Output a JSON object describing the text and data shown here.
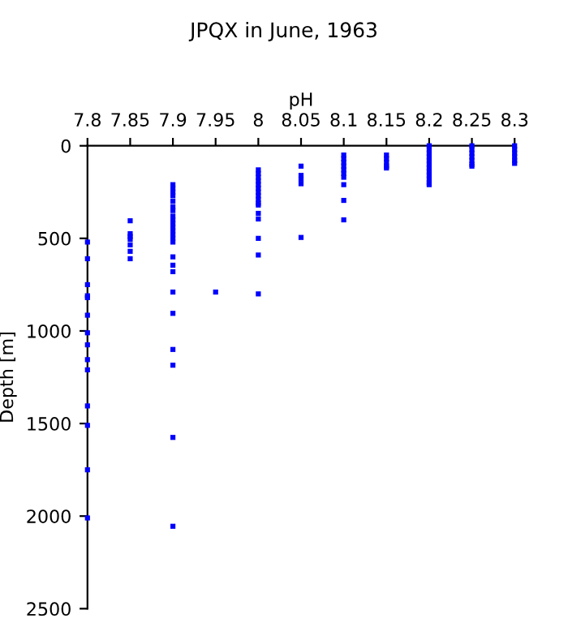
{
  "chart_data": {
    "type": "scatter",
    "title": "JPQX in June, 1963",
    "xlabel": "pH",
    "ylabel": "Depth [m]",
    "series": [
      {
        "color": "#0000ff",
        "x": [
          7.8,
          7.8,
          7.8,
          7.8,
          7.8,
          7.8,
          7.8,
          7.8,
          7.8,
          7.8,
          7.8,
          7.8,
          7.8,
          7.8,
          7.85,
          7.85,
          7.85,
          7.85,
          7.85,
          7.85,
          7.85,
          7.9,
          7.9,
          7.9,
          7.9,
          7.9,
          7.9,
          7.9,
          7.9,
          7.9,
          7.9,
          7.9,
          7.9,
          7.9,
          7.9,
          7.9,
          7.9,
          7.9,
          7.9,
          7.9,
          7.9,
          7.9,
          7.9,
          7.9,
          7.9,
          7.95,
          8,
          8,
          8,
          8,
          8,
          8,
          8,
          8,
          8,
          8,
          8,
          8,
          8,
          8,
          8,
          8,
          8.05,
          8.05,
          8.05,
          8.05,
          8.05,
          8.1,
          8.1,
          8.1,
          8.1,
          8.1,
          8.1,
          8.1,
          8.1,
          8.1,
          8.1,
          8.15,
          8.15,
          8.15,
          8.15,
          8.15,
          8.2,
          8.2,
          8.2,
          8.2,
          8.2,
          8.2,
          8.2,
          8.2,
          8.2,
          8.2,
          8.2,
          8.2,
          8.25,
          8.25,
          8.25,
          8.25,
          8.25,
          8.25,
          8.25,
          8.3,
          8.3,
          8.3,
          8.3,
          8.3,
          8.3
        ],
        "values": [
          520,
          610,
          750,
          810,
          820,
          915,
          1010,
          1075,
          1155,
          1210,
          1405,
          1510,
          1750,
          2010,
          405,
          475,
          490,
          505,
          535,
          570,
          610,
          210,
          230,
          250,
          270,
          300,
          330,
          350,
          380,
          400,
          420,
          440,
          460,
          480,
          500,
          520,
          600,
          645,
          680,
          790,
          905,
          1100,
          1185,
          1575,
          2055,
          790,
          130,
          150,
          170,
          190,
          210,
          230,
          250,
          270,
          290,
          310,
          320,
          365,
          395,
          500,
          590,
          800,
          110,
          160,
          180,
          205,
          495,
          50,
          70,
          90,
          110,
          130,
          150,
          170,
          210,
          295,
          400,
          50,
          70,
          90,
          110,
          120,
          0,
          20,
          40,
          60,
          80,
          100,
          120,
          140,
          160,
          180,
          200,
          210,
          0,
          20,
          40,
          60,
          80,
          100,
          110,
          0,
          20,
          40,
          60,
          80,
          95
        ]
      }
    ],
    "xlim": [
      7.8,
      8.3
    ],
    "xticks": [
      7.8,
      7.85,
      7.9,
      7.95,
      8,
      8.05,
      8.1,
      8.15,
      8.2,
      8.25,
      8.3
    ],
    "ylim": [
      2500,
      0
    ],
    "yticks": [
      0,
      500,
      1000,
      1500,
      2000,
      2500
    ],
    "marker": "square",
    "grid": false,
    "legend": false
  }
}
